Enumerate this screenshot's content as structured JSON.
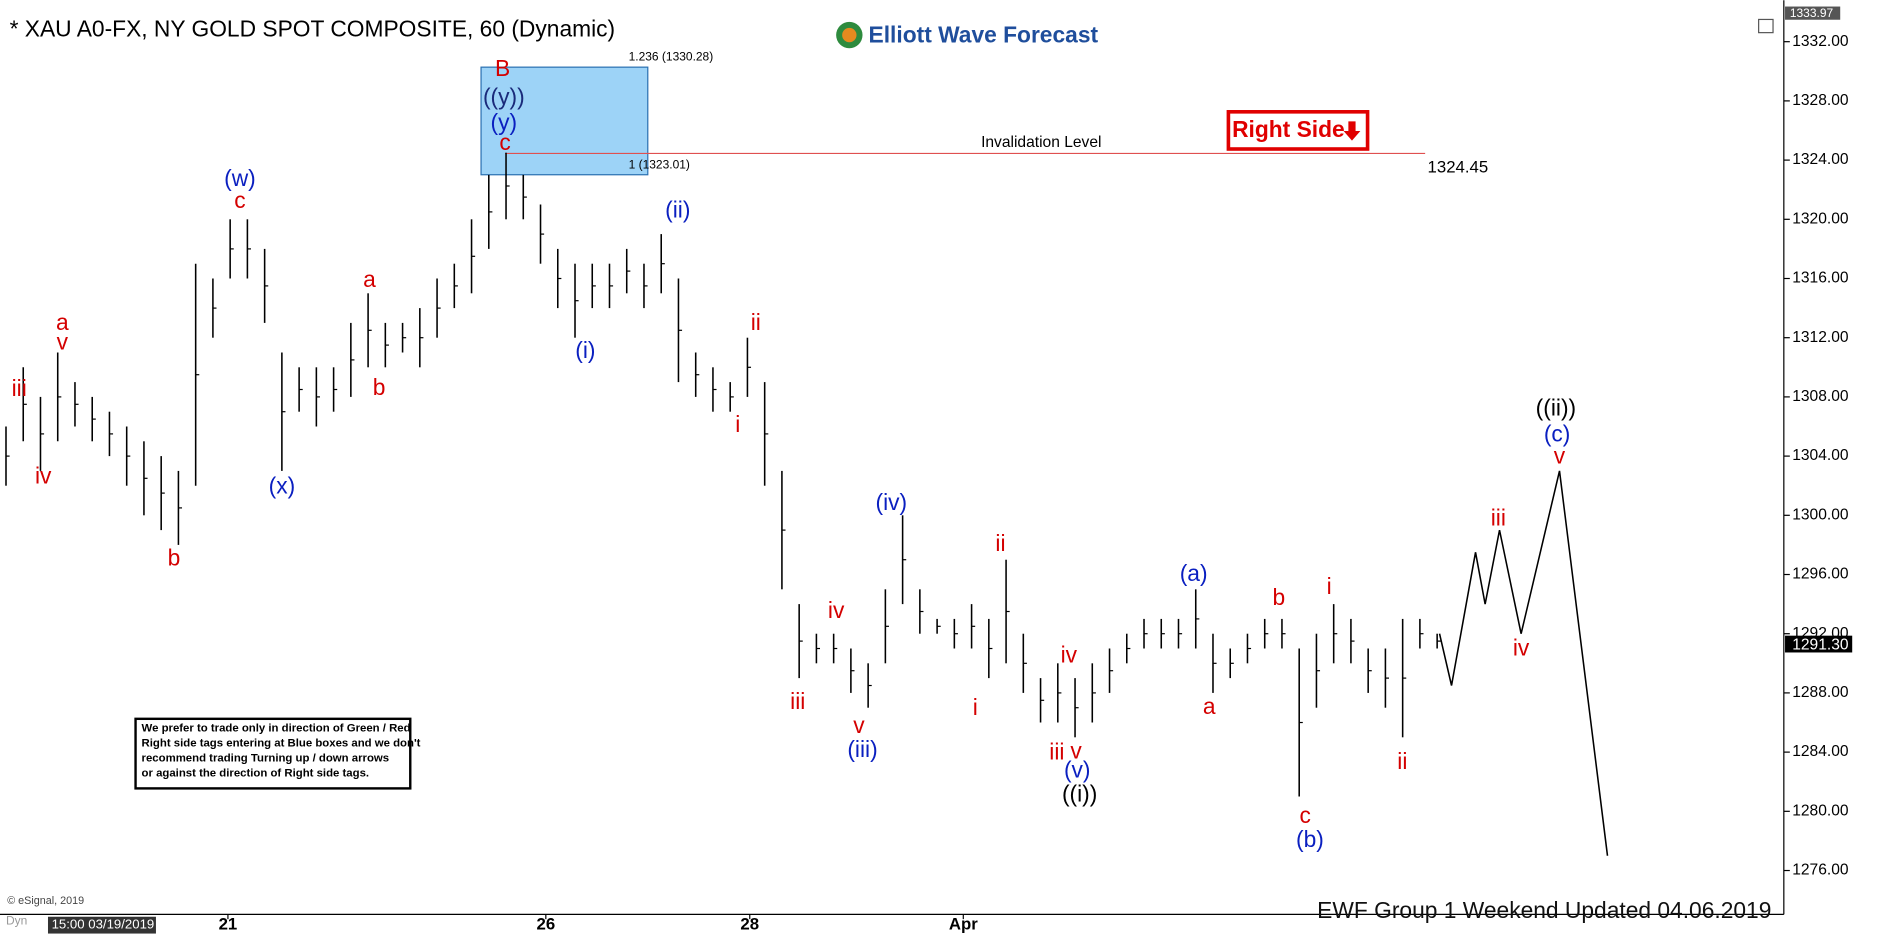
{
  "chart_data": {
    "type": "ohlc",
    "title": "* XAU A0-FX, NY GOLD SPOT COMPOSITE, 60 (Dynamic)",
    "logo": "Elliott Wave Forecast",
    "ylim": [
      1273.2,
      1334.8
    ],
    "yticks": [
      {
        "value": 1332,
        "label": "1332.00"
      },
      {
        "value": 1328,
        "label": "1328.00"
      },
      {
        "value": 1324,
        "label": "1324.00"
      },
      {
        "value": 1320,
        "label": "1320.00"
      },
      {
        "value": 1316,
        "label": "1316.00"
      },
      {
        "value": 1312,
        "label": "1312.00"
      },
      {
        "value": 1308,
        "label": "1308.00"
      },
      {
        "value": 1304,
        "label": "1304.00"
      },
      {
        "value": 1300,
        "label": "1300.00"
      },
      {
        "value": 1296,
        "label": "1296.00"
      },
      {
        "value": 1292,
        "label": "1292.00"
      },
      {
        "value": 1288,
        "label": "1288.00"
      },
      {
        "value": 1284,
        "label": "1284.00"
      },
      {
        "value": 1280,
        "label": "1280.00"
      },
      {
        "value": 1276,
        "label": "1276.00"
      }
    ],
    "x_labels": [
      "21",
      "26",
      "28",
      "Apr"
    ],
    "start_label": "15:00 03/19/2019",
    "color": "#000000",
    "high": [
      1306,
      1310,
      1308,
      1311,
      1309,
      1308,
      1307,
      1306,
      1305,
      1304,
      1303,
      1317,
      1316,
      1320,
      1320,
      1318,
      1311,
      1310,
      1310,
      1310,
      1313,
      1315,
      1313,
      1313,
      1314,
      1316,
      1317,
      1320,
      1323,
      1324.5,
      1323,
      1321,
      1318,
      1317,
      1317,
      1317,
      1318,
      1317,
      1319,
      1316,
      1311,
      1310,
      1309,
      1312,
      1309,
      1303,
      1294,
      1292,
      1292,
      1291,
      1290,
      1295,
      1300,
      1295,
      1293,
      1293,
      1294,
      1293,
      1297,
      1292,
      1289,
      1290,
      1289,
      1290,
      1291,
      1292,
      1293,
      1293,
      1293,
      1295,
      1292,
      1291,
      1292,
      1293,
      1293,
      1291,
      1292,
      1294,
      1293,
      1291,
      1291,
      1293,
      1293,
      1292
    ],
    "low": [
      1302,
      1305,
      1303,
      1305,
      1306,
      1305,
      1304,
      1302,
      1300,
      1299,
      1298,
      1302,
      1312,
      1316,
      1316,
      1313,
      1303,
      1307,
      1306,
      1307,
      1308,
      1310,
      1310,
      1311,
      1310,
      1312,
      1314,
      1315,
      1318,
      1320,
      1320,
      1317,
      1314,
      1312,
      1314,
      1314,
      1315,
      1314,
      1315,
      1309,
      1308,
      1307,
      1307,
      1308,
      1302,
      1295,
      1289,
      1290,
      1290,
      1288,
      1287,
      1290,
      1294,
      1292,
      1292,
      1291,
      1291,
      1289,
      1290,
      1288,
      1286,
      1286,
      1285,
      1286,
      1288,
      1290,
      1291,
      1291,
      1291,
      1291,
      1288,
      1289,
      1290,
      1291,
      1291,
      1281,
      1287,
      1290,
      1290,
      1288,
      1287,
      1285,
      1291,
      1291
    ],
    "projection": [
      1292,
      1288.5,
      1297.5,
      1294,
      1299,
      1292,
      1303,
      1277
    ],
    "fib_levels": [
      {
        "label": "1.236 (1330.28)",
        "value": 1330.28
      },
      {
        "label": "1 (1323.01)",
        "value": 1323.01
      }
    ],
    "invalidation": {
      "label": "Invalidation Level",
      "value": 1324.45,
      "value_label": "1324.45"
    },
    "right_side": "Right Side",
    "last_price": {
      "value": 1291.3,
      "label": "1291.30"
    },
    "top_price": {
      "value": 1333.97,
      "label": "1333.97"
    },
    "note": [
      "We prefer to trade only in direction of Green / Red",
      "Right side tags entering at Blue boxes and we don't",
      "recommend trading Turning up / down arrows",
      "or against the direction of Right side tags."
    ],
    "copyright": "© eSignal, 2019",
    "dyn": "Dyn",
    "footer": "EWF Group 1  Weekend  Updated 04.06.2019",
    "annotations": [
      {
        "text": "iii",
        "color": "#d40000"
      },
      {
        "text": "iv",
        "color": "#d40000"
      },
      {
        "text": "a",
        "color": "#d40000"
      },
      {
        "text": "v",
        "color": "#d40000"
      },
      {
        "text": "b",
        "color": "#d40000"
      },
      {
        "text": "(w)",
        "color": "#0a1fc0"
      },
      {
        "text": "c",
        "color": "#d40000"
      },
      {
        "text": "(x)",
        "color": "#0a1fc0"
      },
      {
        "text": "a",
        "color": "#d40000"
      },
      {
        "text": "b",
        "color": "#d40000"
      },
      {
        "text": "B",
        "color": "#d40000"
      },
      {
        "text": "((y))",
        "color": "#1a2a7a"
      },
      {
        "text": "(y)",
        "color": "#0a1fc0"
      },
      {
        "text": "c",
        "color": "#d40000"
      },
      {
        "text": "(i)",
        "color": "#0a1fc0"
      },
      {
        "text": "(ii)",
        "color": "#0a1fc0"
      },
      {
        "text": "ii",
        "color": "#d40000"
      },
      {
        "text": "i",
        "color": "#d40000"
      },
      {
        "text": "iii",
        "color": "#d40000"
      },
      {
        "text": "iv",
        "color": "#d40000"
      },
      {
        "text": "v",
        "color": "#d40000"
      },
      {
        "text": "(iii)",
        "color": "#0a1fc0"
      },
      {
        "text": "(iv)",
        "color": "#0a1fc0"
      },
      {
        "text": "ii",
        "color": "#d40000"
      },
      {
        "text": "i",
        "color": "#d40000"
      },
      {
        "text": "iv",
        "color": "#d40000"
      },
      {
        "text": "iii",
        "color": "#d40000"
      },
      {
        "text": "v",
        "color": "#d40000"
      },
      {
        "text": "(v)",
        "color": "#0a1fc0"
      },
      {
        "text": "((i))",
        "color": "#000000"
      },
      {
        "text": "(a)",
        "color": "#0a1fc0"
      },
      {
        "text": "a",
        "color": "#d40000"
      },
      {
        "text": "b",
        "color": "#d40000"
      },
      {
        "text": "i",
        "color": "#d40000"
      },
      {
        "text": "c",
        "color": "#d40000"
      },
      {
        "text": "(b)",
        "color": "#0a1fc0"
      },
      {
        "text": "ii",
        "color": "#d40000"
      },
      {
        "text": "iii",
        "color": "#d40000"
      },
      {
        "text": "iv",
        "color": "#d40000"
      },
      {
        "text": "v",
        "color": "#d40000"
      },
      {
        "text": "(c)",
        "color": "#0a1fc0"
      },
      {
        "text": "((ii))",
        "color": "#000000"
      }
    ]
  }
}
